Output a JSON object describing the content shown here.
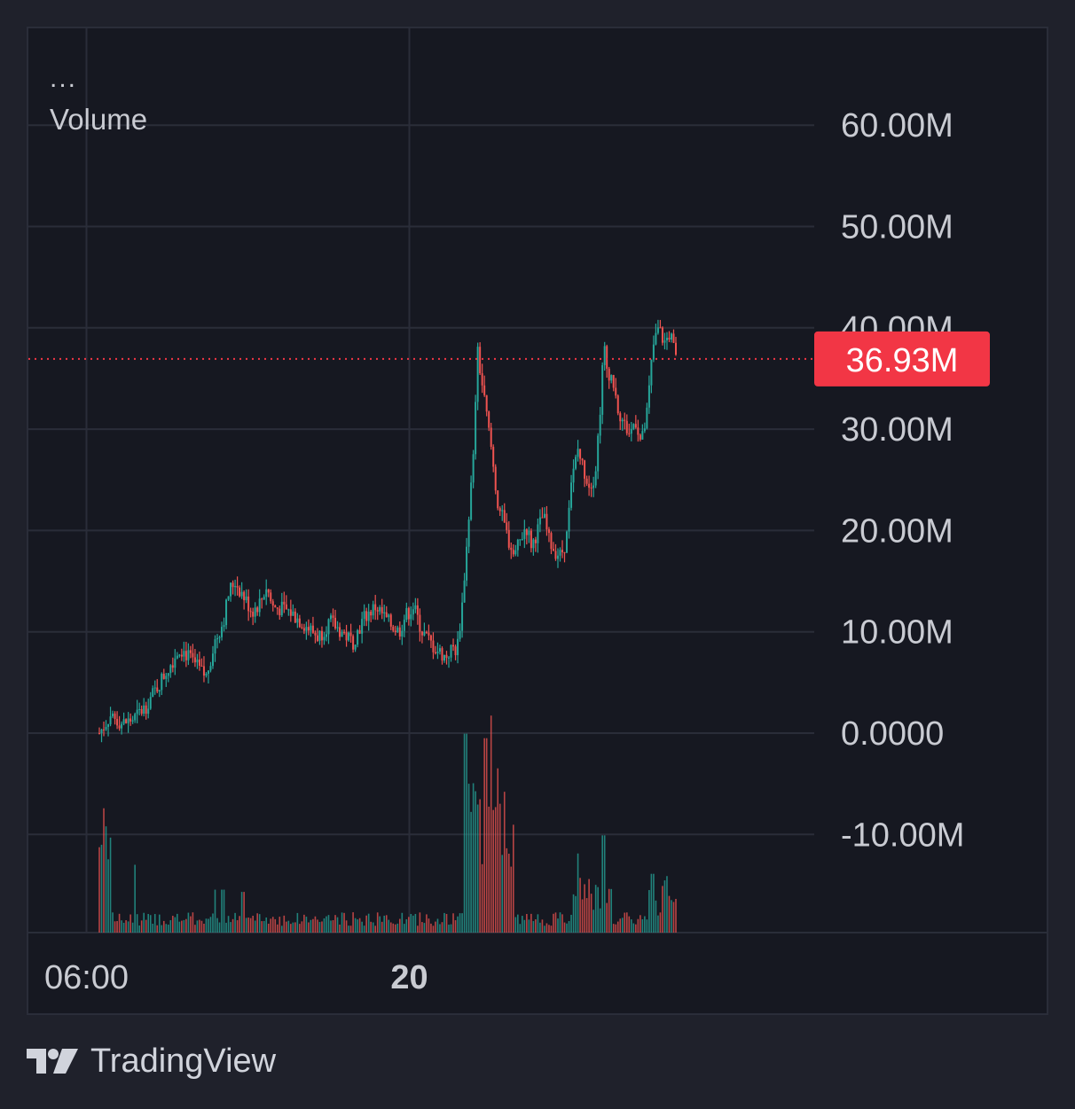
{
  "legend": {
    "menu_glyph": "...",
    "title": "Volume"
  },
  "branding": {
    "logo_icon": "tradingview-logo-icon",
    "name": "TradingView"
  },
  "colors": {
    "background": "#161821",
    "grid": "#2a2d39",
    "up": "#26a69a",
    "down": "#ef5350",
    "price_marker": "#f23645",
    "axis_text": "#c9cbd2"
  },
  "chart_data": {
    "type": "candlestick",
    "title": "",
    "xlabel": "",
    "ylabel": "",
    "y_unit": "M",
    "ylim": [
      -10,
      60
    ],
    "y_ticks": [
      "60.00M",
      "50.00M",
      "40.00M",
      "30.00M",
      "20.00M",
      "10.00M",
      "0.0000",
      "-10.00M"
    ],
    "x_ticks": [
      {
        "label": "06:00",
        "bold": false,
        "t": 0.05
      },
      {
        "label": "20",
        "bold": true,
        "t": 0.61
      }
    ],
    "current_value": 36.93,
    "current_value_label": "36.93M",
    "grid": true,
    "close_path": [
      [
        0.0,
        0.0
      ],
      [
        0.02,
        1.8
      ],
      [
        0.04,
        0.9
      ],
      [
        0.06,
        1.4
      ],
      [
        0.08,
        2.6
      ],
      [
        0.1,
        4.5
      ],
      [
        0.12,
        6.5
      ],
      [
        0.14,
        8.5
      ],
      [
        0.155,
        7.5
      ],
      [
        0.17,
        6.5
      ],
      [
        0.185,
        5.5
      ],
      [
        0.2,
        9.0
      ],
      [
        0.215,
        11.0
      ],
      [
        0.225,
        14.0
      ],
      [
        0.235,
        15.0
      ],
      [
        0.25,
        13.5
      ],
      [
        0.265,
        12.0
      ],
      [
        0.28,
        13.0
      ],
      [
        0.29,
        14.5
      ],
      [
        0.3,
        12.5
      ],
      [
        0.33,
        12.0
      ],
      [
        0.36,
        10.5
      ],
      [
        0.38,
        9.5
      ],
      [
        0.4,
        11.0
      ],
      [
        0.42,
        10.0
      ],
      [
        0.44,
        9.0
      ],
      [
        0.46,
        11.5
      ],
      [
        0.48,
        12.5
      ],
      [
        0.5,
        11.0
      ],
      [
        0.52,
        10.0
      ],
      [
        0.53,
        11.5
      ],
      [
        0.545,
        12.5
      ],
      [
        0.56,
        10.0
      ],
      [
        0.58,
        8.5
      ],
      [
        0.6,
        7.5
      ],
      [
        0.615,
        8.5
      ],
      [
        0.62,
        8.0
      ],
      [
        0.63,
        13.0
      ],
      [
        0.64,
        21.0
      ],
      [
        0.65,
        28.0
      ],
      [
        0.655,
        38.0
      ],
      [
        0.66,
        36.0
      ],
      [
        0.67,
        32.0
      ],
      [
        0.68,
        28.0
      ],
      [
        0.69,
        23.0
      ],
      [
        0.7,
        21.0
      ],
      [
        0.71,
        19.0
      ],
      [
        0.72,
        17.5
      ],
      [
        0.73,
        19.0
      ],
      [
        0.74,
        20.5
      ],
      [
        0.75,
        18.5
      ],
      [
        0.76,
        20.0
      ],
      [
        0.77,
        21.5
      ],
      [
        0.78,
        19.0
      ],
      [
        0.79,
        18.0
      ],
      [
        0.8,
        17.5
      ],
      [
        0.81,
        19.0
      ],
      [
        0.82,
        25.0
      ],
      [
        0.83,
        28.0
      ],
      [
        0.84,
        26.0
      ],
      [
        0.85,
        24.5
      ],
      [
        0.86,
        25.5
      ],
      [
        0.87,
        33.0
      ],
      [
        0.875,
        38.5
      ],
      [
        0.88,
        36.0
      ],
      [
        0.89,
        35.0
      ],
      [
        0.9,
        32.0
      ],
      [
        0.91,
        30.5
      ],
      [
        0.92,
        29.5
      ],
      [
        0.93,
        31.0
      ],
      [
        0.94,
        28.5
      ],
      [
        0.95,
        31.5
      ],
      [
        0.96,
        38.0
      ],
      [
        0.97,
        40.0
      ],
      [
        0.98,
        38.5
      ],
      [
        0.99,
        39.5
      ],
      [
        1.0,
        36.93
      ]
    ],
    "volume_spikes": [
      {
        "t": 0.008,
        "v": 0.55
      },
      {
        "t": 0.012,
        "v": 0.47
      },
      {
        "t": 0.062,
        "v": 0.3
      },
      {
        "t": 0.2,
        "v": 0.19
      },
      {
        "t": 0.215,
        "v": 0.19
      },
      {
        "t": 0.25,
        "v": 0.18
      },
      {
        "t": 0.635,
        "v": 0.88
      },
      {
        "t": 0.65,
        "v": 0.34
      },
      {
        "t": 0.66,
        "v": 0.59
      },
      {
        "t": 0.67,
        "v": 0.86
      },
      {
        "t": 0.68,
        "v": 0.96
      },
      {
        "t": 0.695,
        "v": 0.57
      },
      {
        "t": 0.83,
        "v": 0.35
      },
      {
        "t": 0.875,
        "v": 0.43
      },
      {
        "t": 0.96,
        "v": 0.26
      }
    ]
  }
}
